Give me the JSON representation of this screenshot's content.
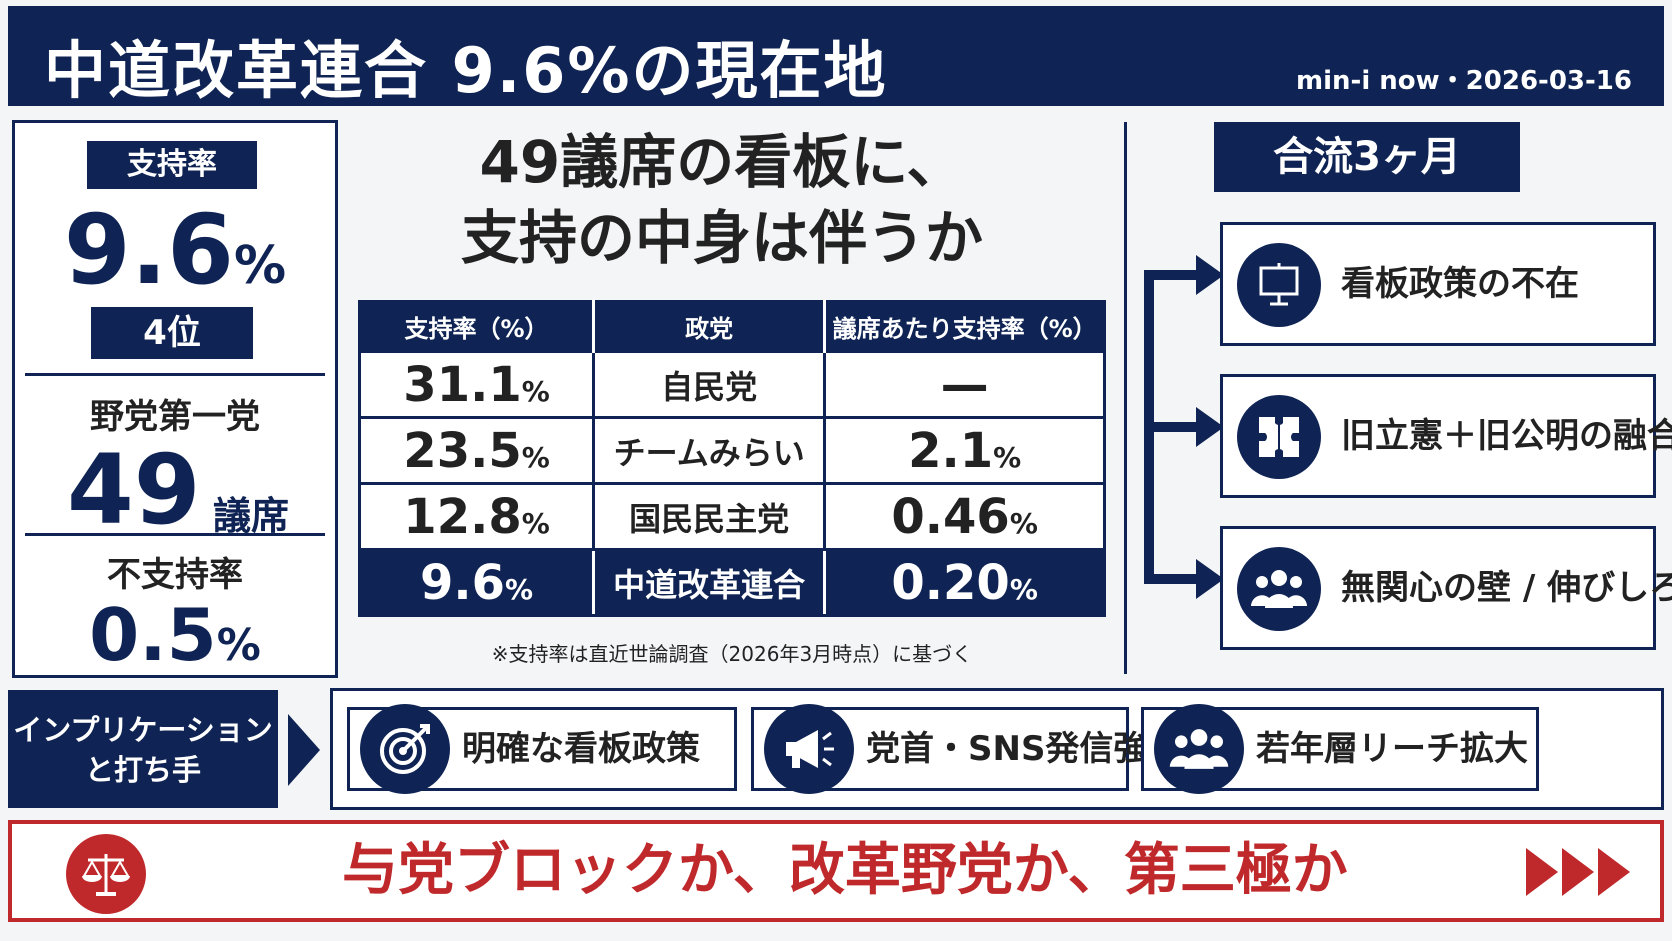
{
  "header": {
    "title": "中道改革連合 9.6%の現在地",
    "meta": "min-i now・2026-03-16"
  },
  "left_panel": {
    "support_tag": "支持率",
    "support_value": "9.6",
    "support_unit": "%",
    "rank": "4位",
    "opposition_label": "野党第一党",
    "seats_value": "49",
    "seats_unit": "議席",
    "disapproval_label": "不支持率",
    "disapproval_value": "0.5",
    "disapproval_unit": "%"
  },
  "center": {
    "title_line1": "49議席の看板に、",
    "title_line2": "支持の中身は伴うか",
    "table": {
      "headers": [
        "支持率（%）",
        "政党",
        "議席あたり支持率（%）"
      ],
      "rows": [
        {
          "rate": "31.1",
          "party": "自民党",
          "per_seat": "—",
          "per_seat_unit": ""
        },
        {
          "rate": "23.5",
          "party": "チームみらい",
          "per_seat": "2.1",
          "per_seat_unit": "%"
        },
        {
          "rate": "12.8",
          "party": "国民民主党",
          "per_seat": "0.46",
          "per_seat_unit": "%"
        },
        {
          "rate": "9.6",
          "party": "中道改革連合",
          "per_seat": "0.20",
          "per_seat_unit": "%"
        }
      ],
      "unit": "%"
    },
    "note": "※支持率は直近世論調査（2026年3月時点）に基づく"
  },
  "right_panel": {
    "tag": "合流3ヶ月",
    "items": [
      {
        "label": "看板政策の不在",
        "icon": "presentation-board-icon"
      },
      {
        "label": "旧立憲＋旧公明の融合",
        "icon": "puzzle-icon"
      },
      {
        "label": "無関心の壁 / 伸びしろ",
        "icon": "people-group-icon"
      }
    ]
  },
  "implications": {
    "tag_line1": "インプリケーション",
    "tag_line2": "と打ち手",
    "items": [
      {
        "label": "明確な看板政策",
        "icon": "target-icon"
      },
      {
        "label": "党首・SNS発信強化",
        "icon": "megaphone-icon"
      },
      {
        "label": "若年層リーチ拡大",
        "icon": "people-group-icon"
      }
    ]
  },
  "banner": {
    "text": "与党ブロックか、改革野党か、第三極か",
    "icon": "scales-icon"
  },
  "colors": {
    "navy": "#0f2454",
    "red": "#c0292b",
    "background": "#f4f5f7"
  }
}
